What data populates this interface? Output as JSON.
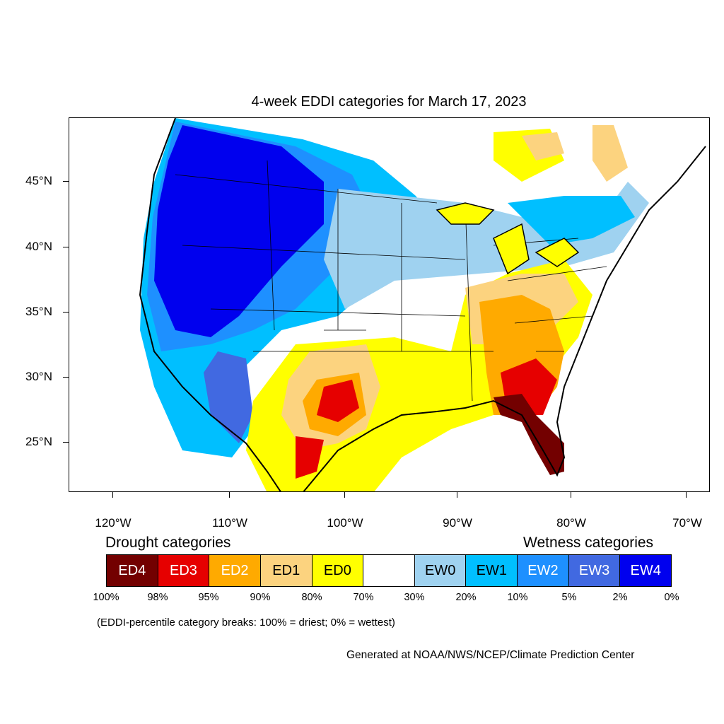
{
  "title": "4-week EDDI categories for March 17, 2023",
  "lat_labels": [
    "45°N",
    "40°N",
    "35°N",
    "30°N",
    "25°N"
  ],
  "lon_labels": [
    "120°W",
    "110°W",
    "100°W",
    "90°W",
    "80°W",
    "70°W"
  ],
  "legend": {
    "drought_heading": "Drought categories",
    "wetness_heading": "Wetness categories",
    "categories": [
      {
        "label": "ED4",
        "color": "#730000",
        "text_color": "#ffffff"
      },
      {
        "label": "ED3",
        "color": "#e60000",
        "text_color": "#ffffff"
      },
      {
        "label": "ED2",
        "color": "#ffaa00",
        "text_color": "#ffffff"
      },
      {
        "label": "ED1",
        "color": "#fcd37f",
        "text_color": "#000000"
      },
      {
        "label": "ED0",
        "color": "#ffff00",
        "text_color": "#000000"
      },
      {
        "label": "",
        "color": "#ffffff",
        "text_color": "#000000"
      },
      {
        "label": "EW0",
        "color": "#9fd2f0",
        "text_color": "#000000"
      },
      {
        "label": "EW1",
        "color": "#00bfff",
        "text_color": "#000000"
      },
      {
        "label": "EW2",
        "color": "#1e90ff",
        "text_color": "#ffffff"
      },
      {
        "label": "EW3",
        "color": "#4169e1",
        "text_color": "#ffffff"
      },
      {
        "label": "EW4",
        "color": "#0000ee",
        "text_color": "#ffffff"
      }
    ],
    "breaks": [
      "100%",
      "98%",
      "95%",
      "90%",
      "80%",
      "70%",
      "30%",
      "20%",
      "10%",
      "5%",
      "2%",
      "0%"
    ]
  },
  "note": "(EDDI-percentile category breaks: 100% = driest; 0% = wettest)",
  "credit": "Generated at NOAA/NWS/NCEP/Climate Prediction Center"
}
